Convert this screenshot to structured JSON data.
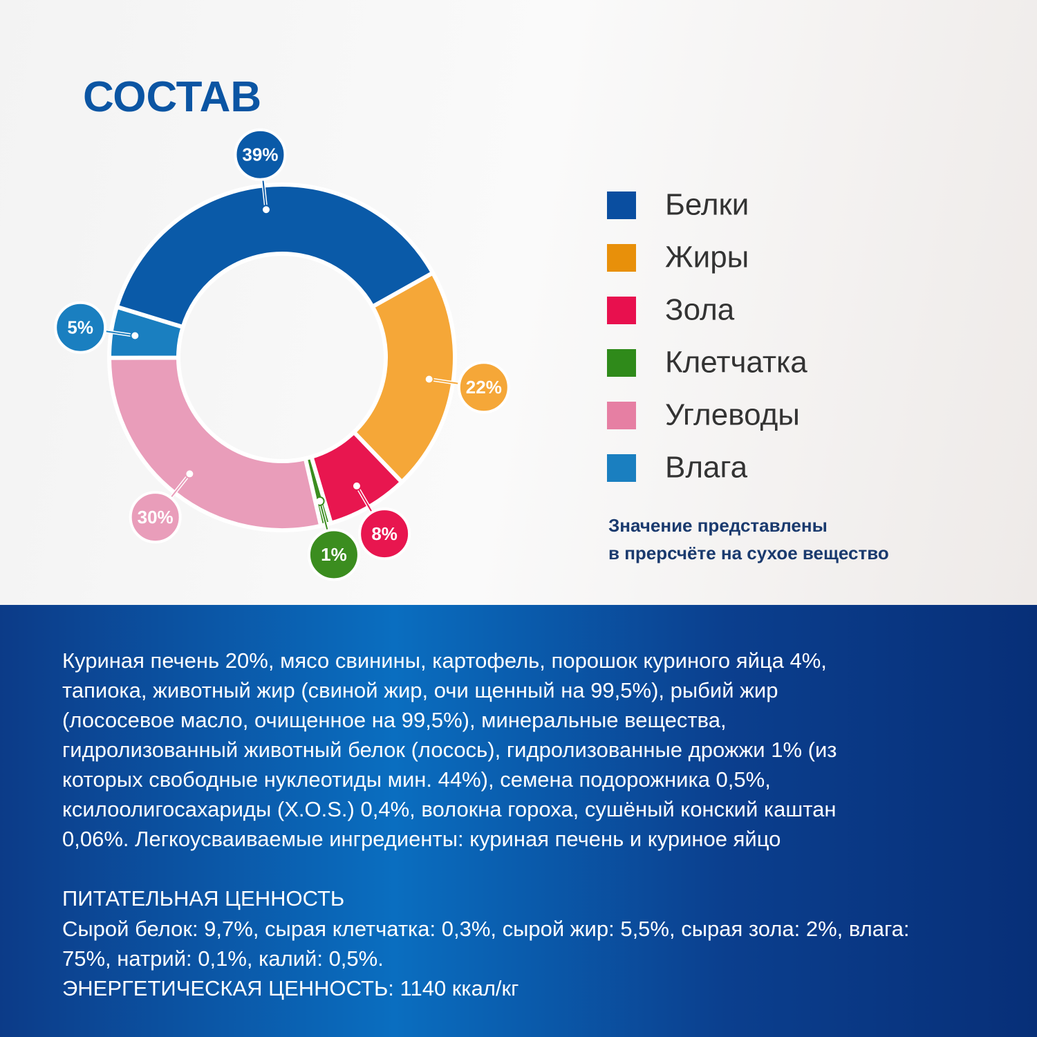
{
  "title": "СОСТАВ",
  "chart_data": {
    "type": "donut",
    "categories": [
      "Белки",
      "Жиры",
      "Зола",
      "Клетчатка",
      "Углеводы",
      "Влага"
    ],
    "values": [
      39,
      22,
      8,
      1,
      30,
      5
    ],
    "value_labels": [
      "39%",
      "22%",
      "8%",
      "1%",
      "30%",
      "5%"
    ],
    "colors": [
      "#0a5aa8",
      "#f5a738",
      "#e8164f",
      "#3b8d1f",
      "#e99dba",
      "#1a7fc0"
    ],
    "legend_colors": [
      "#0a4ea0",
      "#e8900a",
      "#e8104e",
      "#2f8a1a",
      "#e67fa3",
      "#1a7fc0"
    ]
  },
  "note": [
    "Значение представлены",
    "в прерсчёте на сухое вещество"
  ],
  "composition": [
    "Куриная печень 20%, мясо свинины, картофель, порошок куриного яйца 4%,",
    "тапиока, животный жир (свиной жир, очи щенный на 99,5%), рыбий жир",
    "(лососевое масло, очищенное на 99,5%), минеральные вещества,",
    "гидролизованный животный белок (лосось), гидролизованные дрожжи 1% (из",
    "которых свободные нуклеотиды мин. 44%), семена подорожника 0,5%,",
    "ксилоолигосахариды (X.O.S.) 0,4%, волокна гороха, сушёный конский каштан",
    "0,06%. Легкоусваиваемые ингредиенты: куриная печень и куриное яйцо"
  ],
  "nutrition": {
    "heading": "ПИТАТЕЛЬНАЯ ЦЕННОСТЬ",
    "lines": [
      "Сырой белок: 9,7%, сырая клетчатка: 0,3%, сырой жир: 5,5%, сырая зола: 2%, влага:",
      "75%, натрий: 0,1%, калий: 0,5%."
    ],
    "energy": "ЭНЕРГЕТИЧЕСКАЯ ЦЕННОСТЬ: 1140 ккал/кг"
  }
}
